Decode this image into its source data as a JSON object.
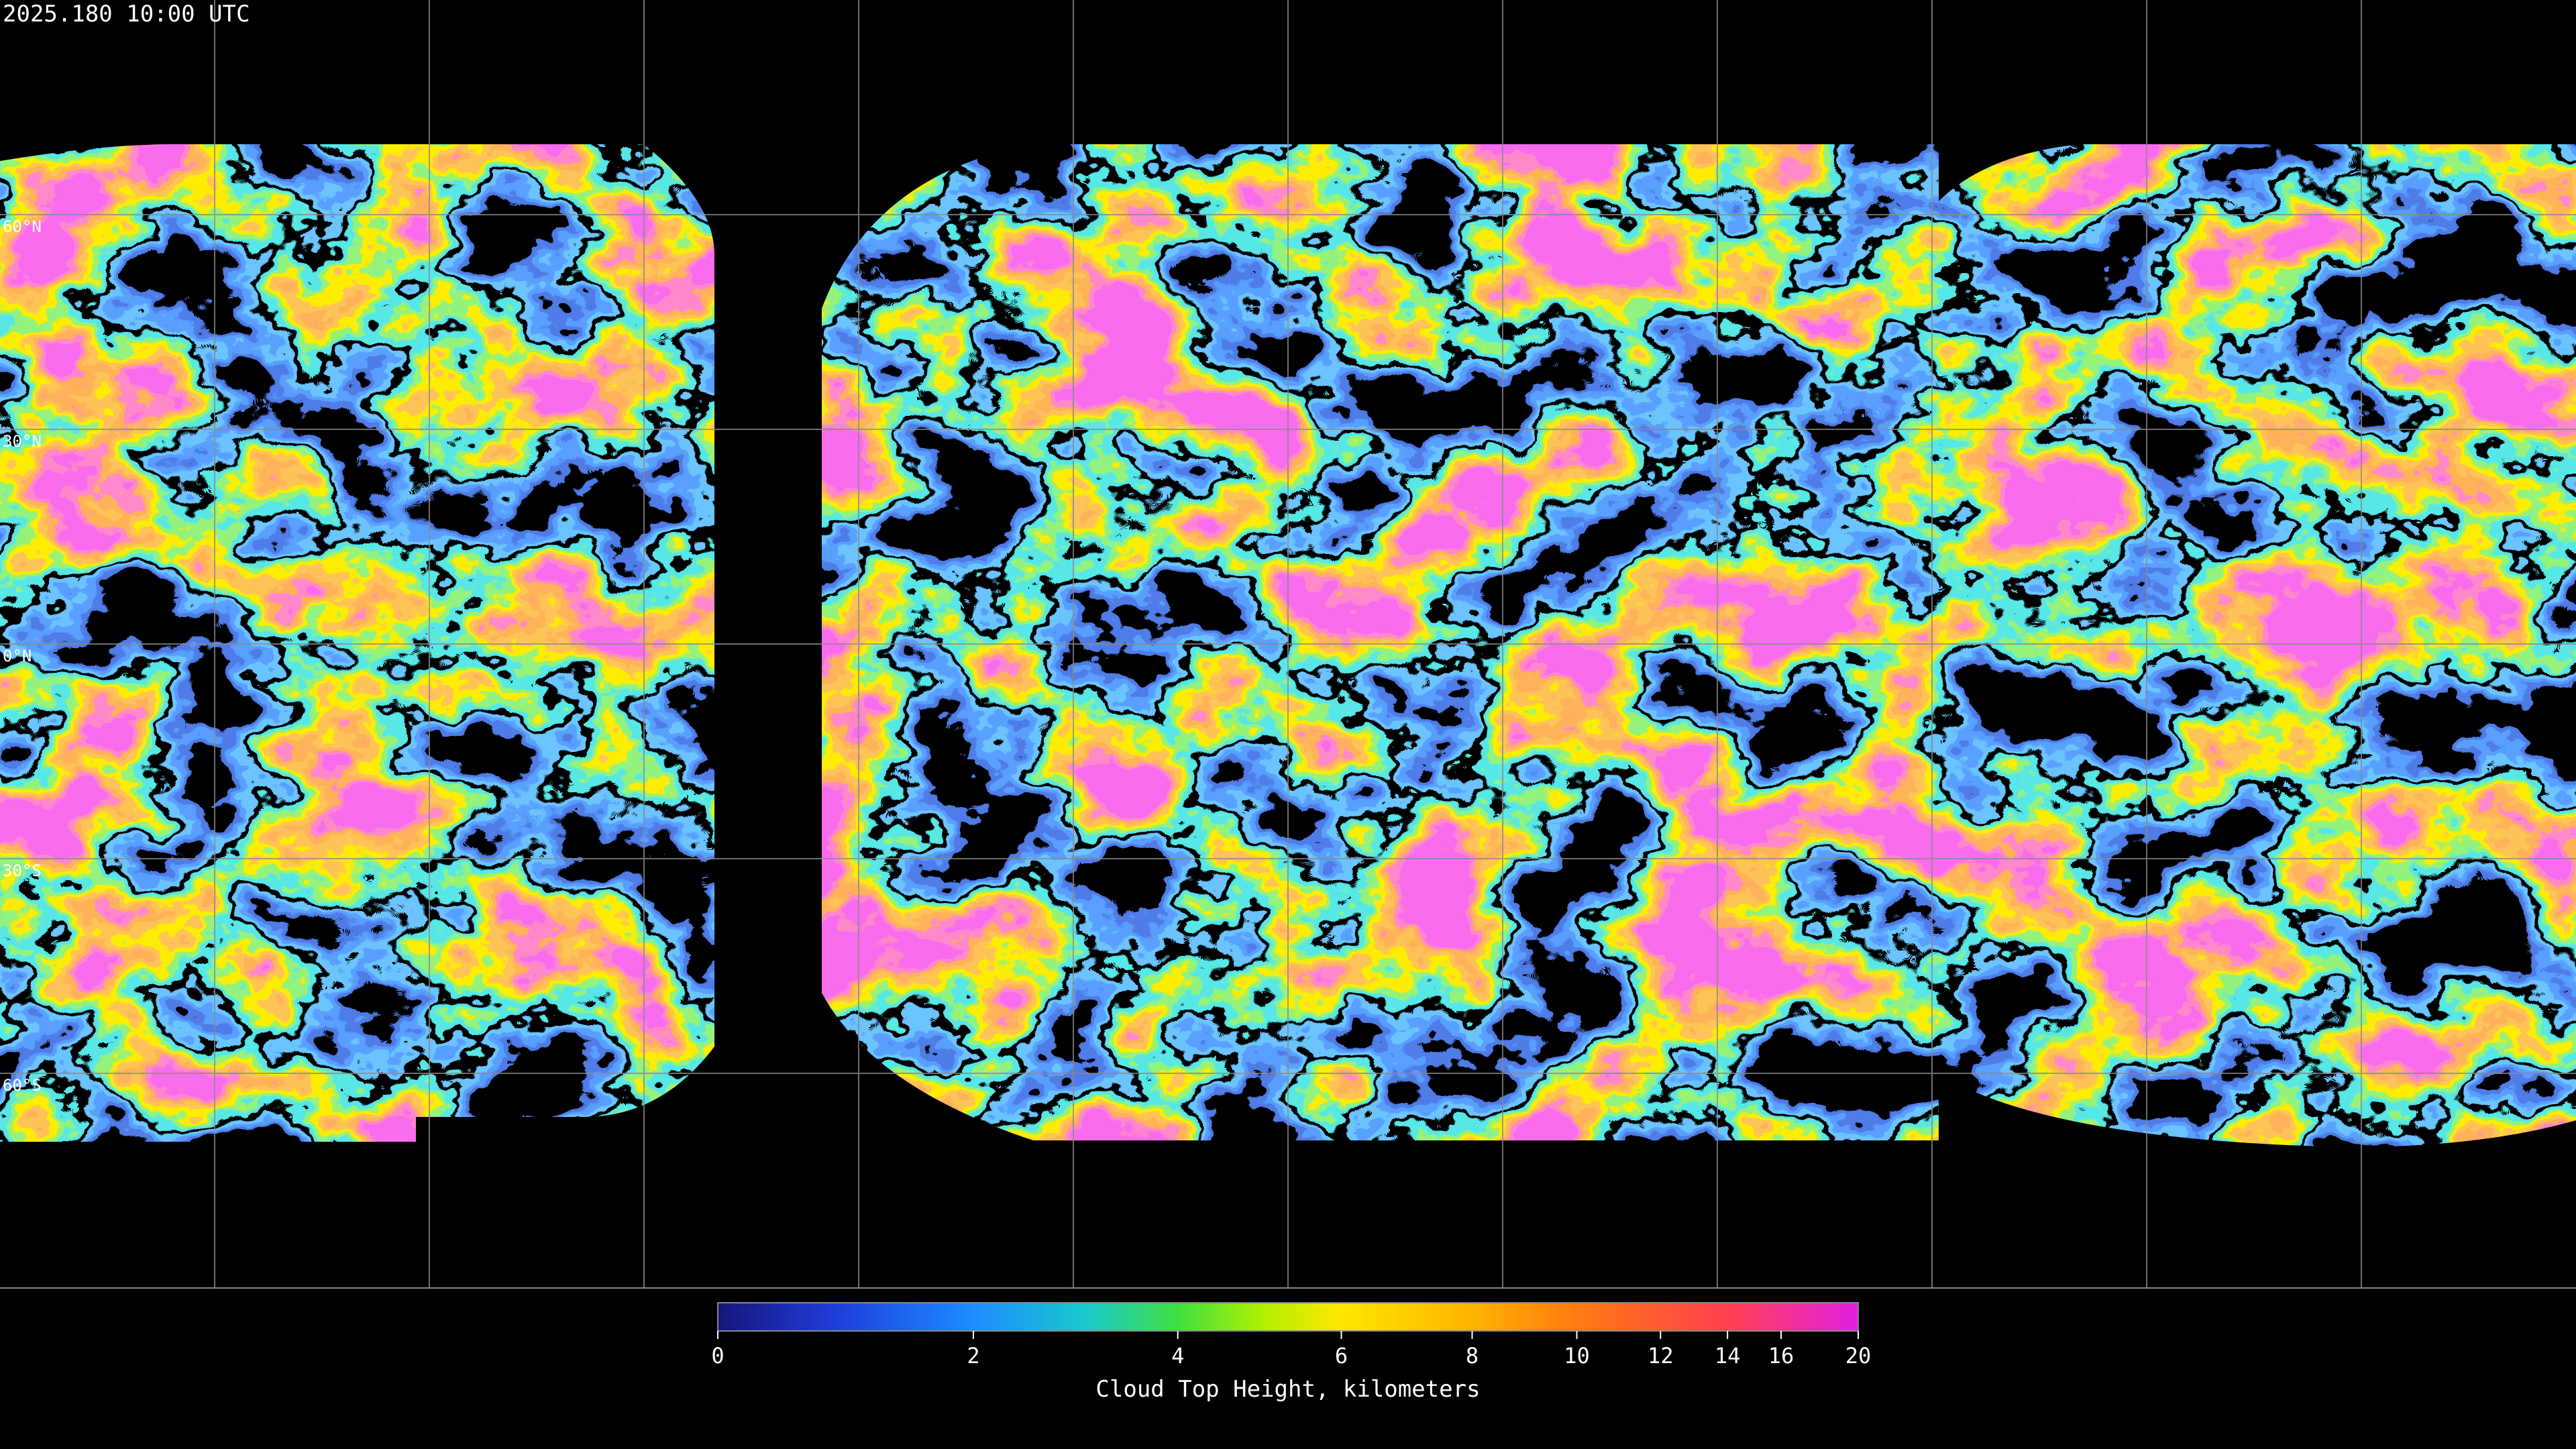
{
  "header": {
    "timestamp": "2025.180 10:00 UTC"
  },
  "map": {
    "lat_labels": [
      "60°N",
      "30°N",
      "0°N",
      "30°S",
      "60°S"
    ]
  },
  "colorbar": {
    "title": "Cloud Top Height, kilometers",
    "range": [
      0,
      20
    ],
    "ticks": [
      0,
      2,
      4,
      6,
      8,
      10,
      12,
      14,
      16,
      20
    ],
    "scale": "exponential"
  }
}
